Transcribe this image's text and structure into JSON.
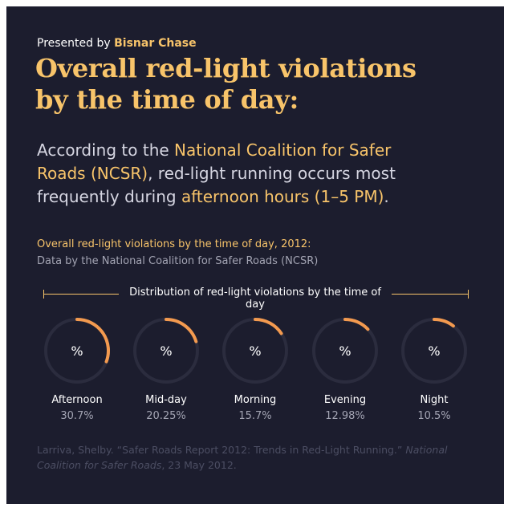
{
  "header": {
    "presented_prefix": "Presented by",
    "presented_brand": "Bisnar Chase",
    "title_line1": "Overall red-light violations",
    "title_line2": "by the time of day:"
  },
  "intro": {
    "l1_a": "According to the ",
    "l1_b": "National Coalition for Safer",
    "l2_a": "Roads (NCSR)",
    "l2_b": ", red-light running occurs most",
    "l3_a": "frequently during ",
    "l3_b": "afternoon hours (1–5 PM)",
    "l3_c": "."
  },
  "subhead": "Overall red-light violations by the time of day, 2012:",
  "source": "Data by the National Coalition for Safer Roads (NCSR)",
  "citation": {
    "part1": "Larriva, Shelby. “Safer Roads Report 2012: Trends in Red-Light Running.” ",
    "part2": "National Coalition for Safer Roads",
    "part3": ", 23 May 2012."
  },
  "colors": {
    "background": "#1c1d2e",
    "accent": "#f8c46a",
    "arc": "#f39a4f",
    "track": "#2b2c3e"
  },
  "chart_data": {
    "type": "pie",
    "title": "Distribution of red-light violations by the time of day",
    "center_symbol": "%",
    "categories": [
      "Afternoon",
      "Mid-day",
      "Morning",
      "Evening",
      "Night"
    ],
    "values": [
      30.7,
      20.25,
      15.7,
      12.98,
      10.5
    ],
    "value_labels": [
      "30.7%",
      "20.25%",
      "15.7%",
      "12.98%",
      "10.5%"
    ],
    "unit": "%"
  }
}
